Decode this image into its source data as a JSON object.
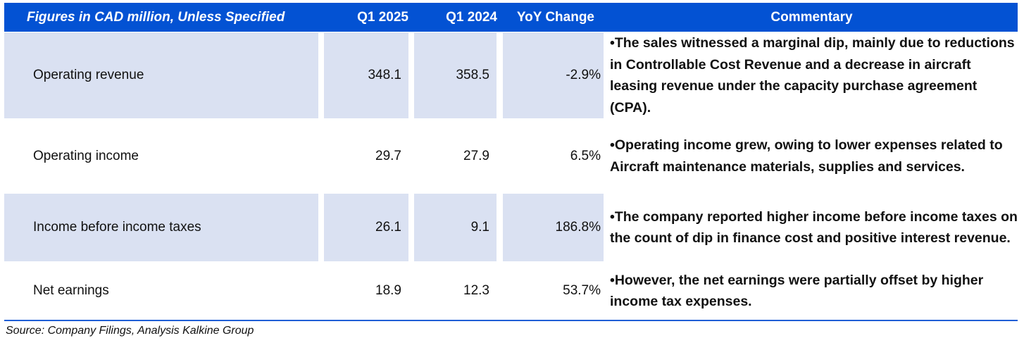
{
  "table": {
    "header": {
      "label": "Figures in CAD million, Unless Specified",
      "col_q1_2025": "Q1 2025",
      "col_q1_2024": "Q1 2024",
      "col_yoy": "YoY Change",
      "col_commentary": "Commentary"
    },
    "rows": [
      {
        "label": "Operating revenue",
        "q1_2025": "348.1",
        "q1_2024": "358.5",
        "yoy": "-2.9%",
        "commentary": "•The sales witnessed a marginal dip, mainly due to reductions in Controllable Cost Revenue and a decrease in aircraft leasing revenue under the capacity purchase agreement (CPA)."
      },
      {
        "label": "Operating income",
        "q1_2025": "29.7",
        "q1_2024": "27.9",
        "yoy": "6.5%",
        "commentary": "•Operating income grew, owing to lower expenses related to Aircraft maintenance materials, supplies and services."
      },
      {
        "label": "Income before income taxes",
        "q1_2025": "26.1",
        "q1_2024": "9.1",
        "yoy": "186.8%",
        "commentary": "•The company reported higher income before income taxes on the count of dip in finance cost and positive interest revenue."
      },
      {
        "label": "Net earnings",
        "q1_2025": "18.9",
        "q1_2024": "12.3",
        "yoy": "53.7%",
        "commentary": "•However, the net earnings were partially offset by higher income tax expenses."
      }
    ]
  },
  "footer": {
    "source": "Source: Company Filings, Analysis Kalkine Group"
  },
  "colors": {
    "header_bg": "#0352d3",
    "shaded_cell": "#dae1f2",
    "rule": "#1f5fd6"
  }
}
